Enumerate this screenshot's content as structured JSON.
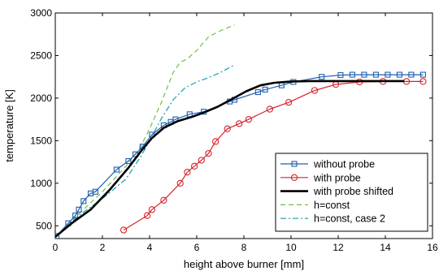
{
  "chart_data": {
    "type": "line",
    "xlabel": "height above burner [mm]",
    "ylabel": "temperature [K]",
    "xlim": [
      0,
      16
    ],
    "ylim": [
      350,
      3000
    ],
    "xticks": [
      0,
      2,
      4,
      6,
      8,
      10,
      12,
      14,
      16
    ],
    "yticks": [
      500,
      1000,
      1500,
      2000,
      2500,
      3000
    ],
    "grid": false,
    "legend_position": "bottom-right",
    "series": [
      {
        "name": "without probe",
        "color": "#1f5fae",
        "style": "solid",
        "marker": "square",
        "x": [
          0.05,
          0.55,
          0.85,
          1.0,
          1.2,
          1.5,
          1.7,
          2.6,
          3.1,
          3.4,
          3.7,
          4.1,
          4.6,
          4.9,
          5.1,
          5.7,
          6.3,
          7.4,
          7.6,
          8.6,
          8.9,
          9.6,
          10.1,
          11.3,
          12.1,
          12.6,
          13.1,
          13.6,
          14.1,
          14.6,
          15.1,
          15.6
        ],
        "y": [
          380,
          530,
          620,
          690,
          790,
          880,
          900,
          1160,
          1260,
          1340,
          1430,
          1570,
          1680,
          1720,
          1750,
          1810,
          1840,
          1960,
          1980,
          2070,
          2100,
          2150,
          2190,
          2250,
          2270,
          2275,
          2275,
          2275,
          2275,
          2275,
          2275,
          2275
        ]
      },
      {
        "name": "with probe",
        "color": "#d8232a",
        "style": "solid",
        "marker": "circle",
        "x": [
          2.9,
          3.9,
          4.1,
          4.6,
          5.3,
          5.6,
          5.9,
          6.2,
          6.5,
          6.8,
          7.3,
          7.8,
          8.2,
          9.1,
          9.9,
          11.0,
          11.9,
          12.9,
          13.9,
          14.9,
          15.6
        ],
        "y": [
          450,
          620,
          690,
          800,
          1000,
          1130,
          1200,
          1270,
          1350,
          1490,
          1640,
          1700,
          1750,
          1870,
          1950,
          2090,
          2160,
          2190,
          2195,
          2195,
          2195
        ]
      },
      {
        "name": "with probe shifted",
        "color": "#000000",
        "style": "solid-thick",
        "marker": "none",
        "x": [
          0.0,
          0.7,
          1.5,
          2.3,
          3.1,
          3.7,
          4.1,
          4.6,
          5.2,
          5.8,
          6.3,
          6.9,
          7.5,
          8.1,
          8.7,
          9.3,
          10.0,
          10.8,
          11.8,
          12.8,
          13.8,
          14.8
        ],
        "y": [
          370,
          530,
          690,
          920,
          1180,
          1400,
          1530,
          1650,
          1730,
          1780,
          1830,
          1900,
          1990,
          2080,
          2150,
          2180,
          2195,
          2200,
          2200,
          2200,
          2200,
          2200
        ]
      },
      {
        "name": "h=const",
        "color": "#6fbf4a",
        "style": "dashed",
        "marker": "none",
        "x": [
          0.0,
          1.0,
          2.0,
          3.0,
          3.6,
          4.0,
          4.5,
          5.0,
          5.3,
          5.6,
          6.0,
          6.5,
          7.0,
          7.6
        ],
        "y": [
          370,
          640,
          900,
          1200,
          1420,
          1640,
          1950,
          2300,
          2420,
          2460,
          2560,
          2720,
          2790,
          2860
        ]
      },
      {
        "name": "h=const, case 2",
        "color": "#109eab",
        "style": "dashdot",
        "marker": "none",
        "x": [
          0.0,
          1.0,
          2.0,
          3.0,
          3.6,
          4.1,
          4.5,
          5.0,
          5.5,
          6.0,
          6.5,
          7.0,
          7.6
        ],
        "y": [
          370,
          620,
          820,
          1050,
          1300,
          1550,
          1760,
          1980,
          2120,
          2190,
          2240,
          2300,
          2390
        ]
      }
    ]
  }
}
